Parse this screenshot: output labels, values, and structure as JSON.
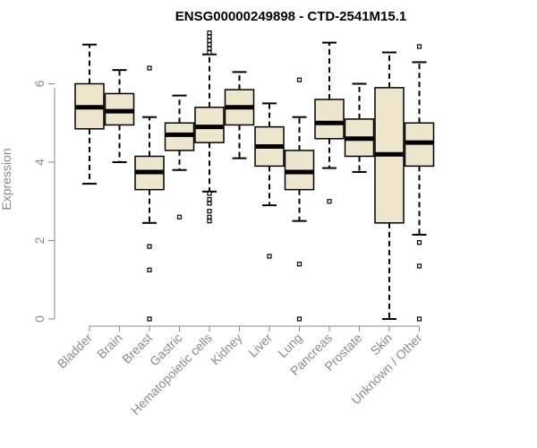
{
  "chart_data": {
    "type": "boxplot",
    "title": "ENSG00000249898 - CTD-2541M15.1",
    "xlabel": "",
    "ylabel": "Expression",
    "ylim": [
      0,
      7.2
    ],
    "yticks": [
      0,
      2,
      4,
      6
    ],
    "colors": {
      "box_fill": "#ede6cc",
      "stroke": "#000000",
      "axis": "#8a8a8a"
    },
    "categories": [
      "Bladder",
      "Brain",
      "Breast",
      "Gastric",
      "Hematopoietic cells",
      "Kidney",
      "Liver",
      "Lung",
      "Pancreas",
      "Prostate",
      "Skin",
      "Unknown / Other"
    ],
    "boxes": [
      {
        "category": "Bladder",
        "whisker_low": 3.45,
        "q1": 4.85,
        "median": 5.4,
        "q3": 6.0,
        "whisker_high": 7.0,
        "outliers": []
      },
      {
        "category": "Brain",
        "whisker_low": 4.0,
        "q1": 4.95,
        "median": 5.3,
        "q3": 5.75,
        "whisker_high": 6.35,
        "outliers": []
      },
      {
        "category": "Breast",
        "whisker_low": 2.45,
        "q1": 3.3,
        "median": 3.75,
        "q3": 4.15,
        "whisker_high": 5.15,
        "outliers": [
          6.4,
          1.85,
          1.25,
          0.0
        ]
      },
      {
        "category": "Gastric",
        "whisker_low": 3.8,
        "q1": 4.3,
        "median": 4.7,
        "q3": 5.0,
        "whisker_high": 5.7,
        "outliers": [
          2.6
        ]
      },
      {
        "category": "Hematopoietic cells",
        "whisker_low": 3.25,
        "q1": 4.5,
        "median": 4.9,
        "q3": 5.4,
        "whisker_high": 6.75,
        "outliers": [
          7.3,
          7.2,
          7.1,
          7.0,
          6.9,
          6.8,
          3.2,
          3.05,
          2.95,
          2.75,
          2.6,
          2.5
        ]
      },
      {
        "category": "Kidney",
        "whisker_low": 4.1,
        "q1": 4.95,
        "median": 5.4,
        "q3": 5.85,
        "whisker_high": 6.3,
        "outliers": []
      },
      {
        "category": "Liver",
        "whisker_low": 2.9,
        "q1": 3.9,
        "median": 4.4,
        "q3": 4.9,
        "whisker_high": 5.5,
        "outliers": [
          1.6
        ]
      },
      {
        "category": "Lung",
        "whisker_low": 2.5,
        "q1": 3.3,
        "median": 3.75,
        "q3": 4.3,
        "whisker_high": 5.15,
        "outliers": [
          6.1,
          1.4,
          0.0
        ]
      },
      {
        "category": "Pancreas",
        "whisker_low": 3.85,
        "q1": 4.6,
        "median": 5.0,
        "q3": 5.6,
        "whisker_high": 7.05,
        "outliers": [
          3.0
        ]
      },
      {
        "category": "Prostate",
        "whisker_low": 3.75,
        "q1": 4.15,
        "median": 4.6,
        "q3": 5.1,
        "whisker_high": 6.0,
        "outliers": []
      },
      {
        "category": "Skin",
        "whisker_low": 0.0,
        "q1": 2.45,
        "median": 4.2,
        "q3": 5.9,
        "whisker_high": 6.8,
        "outliers": []
      },
      {
        "category": "Unknown / Other",
        "whisker_low": 2.15,
        "q1": 3.9,
        "median": 4.5,
        "q3": 5.0,
        "whisker_high": 6.55,
        "outliers": [
          6.95,
          1.95,
          1.35,
          0.0
        ]
      }
    ]
  }
}
